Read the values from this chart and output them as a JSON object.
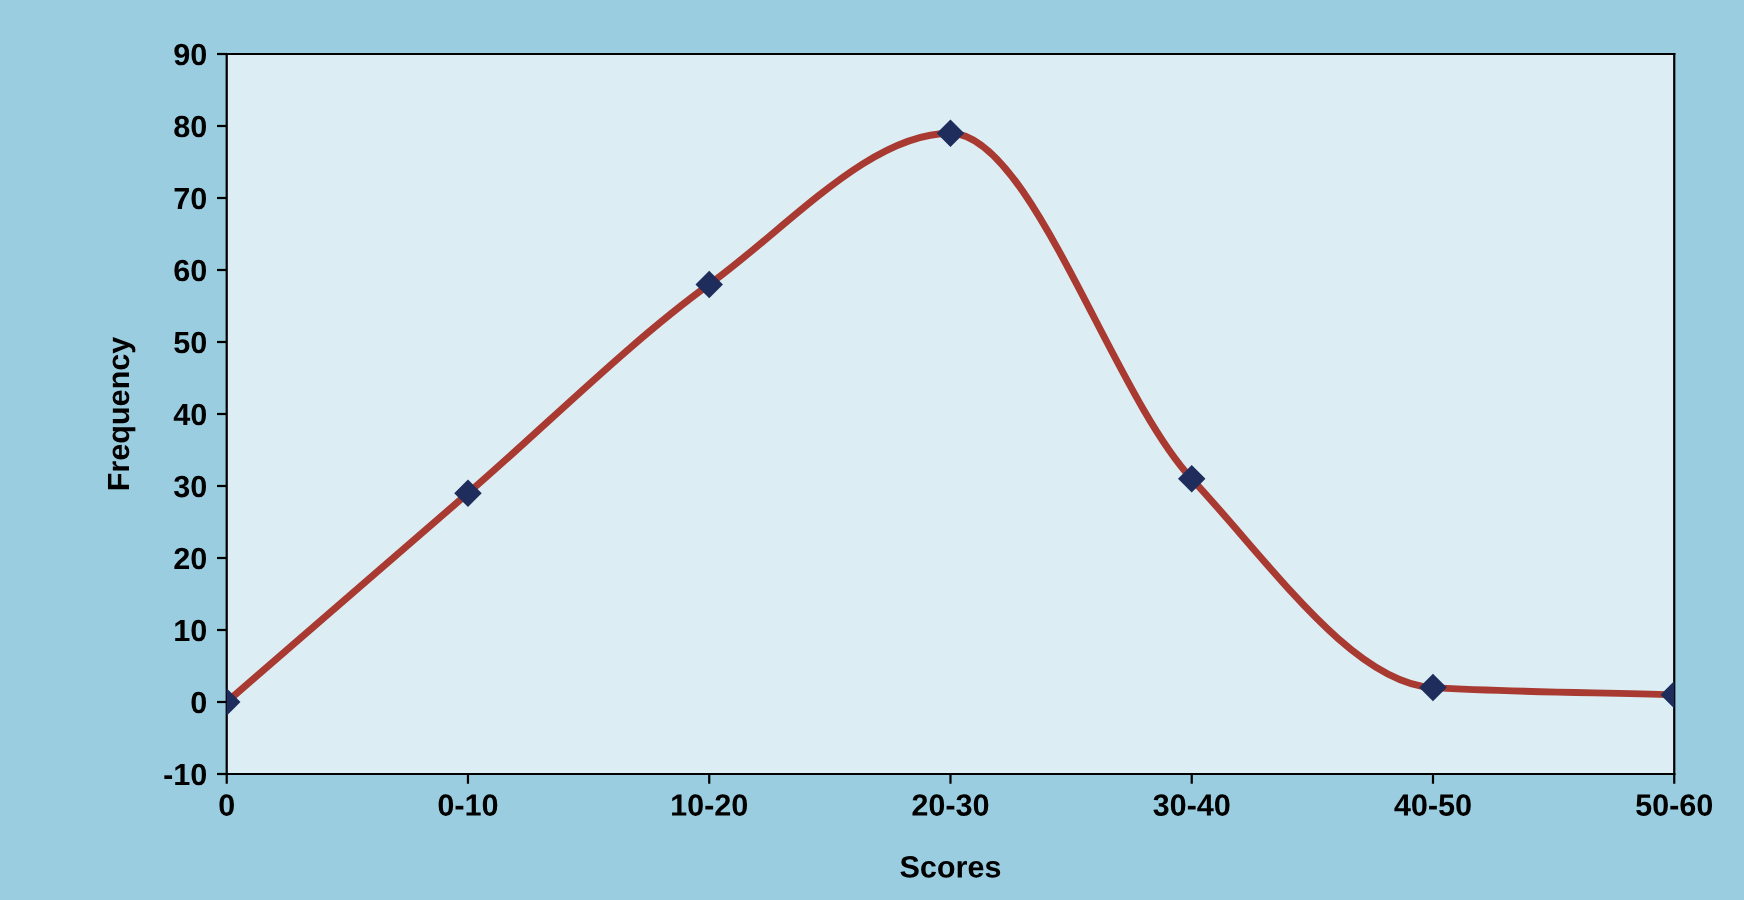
{
  "chart_data": {
    "type": "line",
    "xlabel": "Scores",
    "ylabel": "Frequency",
    "categories": [
      "0",
      "0-10",
      "10-20",
      "20-30",
      "30-40",
      "40-50",
      "50-60"
    ],
    "series": [
      {
        "color": "#a83a32",
        "values": [
          0,
          29,
          58,
          79,
          31,
          2,
          1
        ]
      }
    ],
    "marker": "diamond",
    "ylim": [
      -10,
      90
    ],
    "yticks": [
      -10,
      0,
      10,
      20,
      30,
      40,
      50,
      60,
      70,
      80,
      90
    ],
    "grid": false,
    "legend": false
  }
}
